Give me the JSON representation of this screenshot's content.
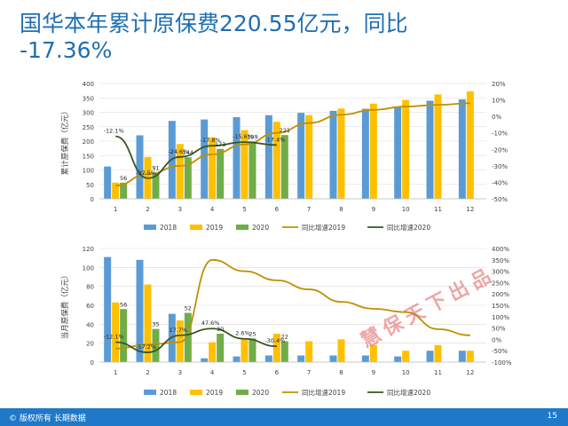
{
  "header": {
    "title_line1": "国华本年累计原保费220.55亿元，同比",
    "title_line2": "-17.36%"
  },
  "footer": {
    "copyright": "© 版权所有 长期数据",
    "page_number": "15"
  },
  "watermark": "慧保天下出品",
  "colors": {
    "s2018": "#5b9bd5",
    "s2019": "#ffc000",
    "s2020": "#70ad47",
    "g2019": "#bf9000",
    "g2020": "#375623",
    "title": "#1f6fb2",
    "footer": "#1f78c8"
  },
  "chart_data": [
    {
      "type": "bar",
      "ylabel": "累计原保费（亿元）",
      "categories": [
        "1",
        "2",
        "3",
        "4",
        "5",
        "6",
        "7",
        "8",
        "9",
        "10",
        "11",
        "12"
      ],
      "ylim": [
        0,
        400
      ],
      "yticks": [
        "0",
        "50",
        "100",
        "150",
        "200",
        "250",
        "300",
        "350",
        "400"
      ],
      "y2lim": [
        -50,
        20
      ],
      "y2ticks": [
        "-50%",
        "-40%",
        "-30%",
        "-20%",
        "-10%",
        "0%",
        "10%",
        "20%"
      ],
      "legend_position": "bottom",
      "legend": [
        "2018",
        "2019",
        "2020",
        "同比增速2019",
        "同比增速2020"
      ],
      "series": [
        {
          "name": "2018",
          "values": [
            112,
            220,
            270,
            275,
            283,
            290,
            298,
            305,
            312,
            318,
            340,
            345
          ]
        },
        {
          "name": "2019",
          "values": [
            56,
            145,
            190,
            213,
            238,
            267,
            290,
            313,
            330,
            343,
            362,
            373
          ]
        },
        {
          "name": "2020",
          "values": [
            56,
            91,
            144,
            173,
            199,
            221,
            null,
            null,
            null,
            null,
            null,
            null
          ]
        }
      ],
      "growth_series": [
        {
          "name": "同比增速2019",
          "values": [
            -42,
            -35,
            -30,
            -23,
            -17,
            -10,
            -4,
            1,
            4,
            6,
            7,
            8
          ]
        },
        {
          "name": "同比增速2020",
          "values": [
            -12.1,
            -37.5,
            -24.6,
            -17.8,
            -15.6,
            -17.4,
            null,
            null,
            null,
            null,
            null,
            null
          ]
        }
      ],
      "data_labels_2020": [
        "56",
        "91",
        "144",
        "173",
        "199",
        "221"
      ],
      "growth_labels_2020": [
        "-12.1%",
        "-37.5%",
        "-24.6%",
        "-17.8%",
        "-15.6%",
        "-17.4%"
      ]
    },
    {
      "type": "bar",
      "ylabel": "当月原保费（亿元）",
      "categories": [
        "1",
        "2",
        "3",
        "4",
        "5",
        "6",
        "7",
        "8",
        "9",
        "10",
        "11",
        "12"
      ],
      "ylim": [
        0,
        120
      ],
      "yticks": [
        "0",
        "20",
        "40",
        "60",
        "80",
        "100",
        "120"
      ],
      "y2lim": [
        -100,
        400
      ],
      "y2ticks": [
        "-100%",
        "-50%",
        "0%",
        "50%",
        "100%",
        "150%",
        "200%",
        "250%",
        "300%",
        "350%",
        "400%"
      ],
      "legend_position": "bottom",
      "legend": [
        "2018",
        "2019",
        "2020",
        "同比增速2019",
        "同比增速2020"
      ],
      "series": [
        {
          "name": "2018",
          "values": [
            111,
            108,
            51,
            4,
            6,
            7,
            7,
            7,
            7,
            6,
            12,
            12
          ]
        },
        {
          "name": "2019",
          "values": [
            63,
            82,
            44,
            21,
            24,
            30,
            22,
            24,
            18,
            12,
            18,
            12
          ]
        },
        {
          "name": "2020",
          "values": [
            56,
            35,
            52,
            30,
            25,
            22,
            null,
            null,
            null,
            null,
            null,
            null
          ]
        }
      ],
      "growth_series": [
        {
          "name": "同比增速2019",
          "values": [
            -40,
            -23,
            -12,
            350,
            300,
            260,
            220,
            165,
            135,
            120,
            45,
            18
          ]
        },
        {
          "name": "同比增速2020",
          "values": [
            -12.1,
            -57.2,
            17.7,
            47.6,
            2.6,
            -30.4,
            null,
            null,
            null,
            null,
            null,
            null
          ]
        }
      ],
      "data_labels_2020": [
        "56",
        "35",
        "52",
        "30",
        "25",
        "22"
      ],
      "growth_labels_2020": [
        "-12.1%",
        "-57.2%",
        "17.7%",
        "47.6%",
        "2.6%",
        "-30.4%"
      ]
    }
  ]
}
